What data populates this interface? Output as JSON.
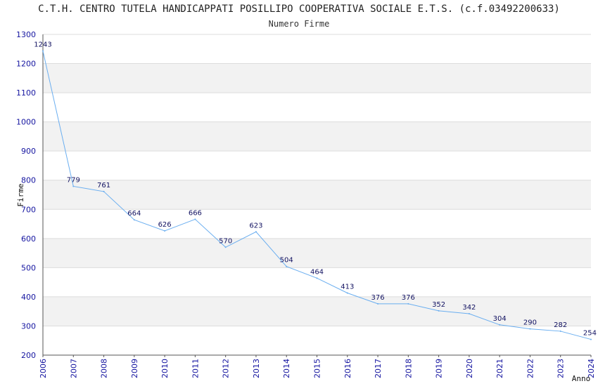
{
  "chart_data": {
    "type": "line",
    "title": "C.T.H. CENTRO TUTELA HANDICAPPATI POSILLIPO COOPERATIVA SOCIALE E.T.S. (c.f.03492200633)",
    "subtitle": "Numero Firme",
    "xlabel": "Anno",
    "ylabel": "Firme",
    "ylim": [
      200,
      1300
    ],
    "yticks": [
      200,
      300,
      400,
      500,
      600,
      700,
      800,
      900,
      1000,
      1100,
      1200,
      1300
    ],
    "x": [
      "2006",
      "2007",
      "2008",
      "2009",
      "2010",
      "2011",
      "2012",
      "2013",
      "2014",
      "2015",
      "2016",
      "2017",
      "2018",
      "2019",
      "2020",
      "2021",
      "2022",
      "2023",
      "2024"
    ],
    "series": [
      {
        "name": "Numero Firme",
        "values": [
          1243,
          779,
          761,
          664,
          626,
          666,
          570,
          623,
          504,
          464,
          413,
          376,
          376,
          352,
          342,
          304,
          290,
          282,
          254
        ]
      }
    ],
    "grid": true,
    "colors": {
      "line": "#6aaef0",
      "band": "#f2f2f2",
      "tick_text": "#1414a0",
      "label_text": "#101060"
    }
  }
}
